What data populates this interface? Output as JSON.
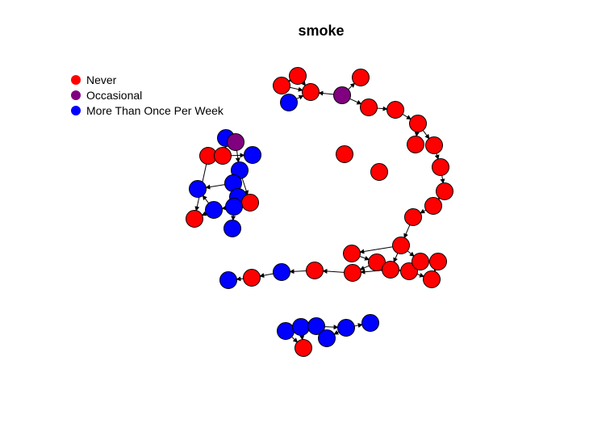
{
  "title": "smoke",
  "legend": [
    {
      "label": "Never",
      "color": "#ff0000"
    },
    {
      "label": "Occasional",
      "color": "#800080"
    },
    {
      "label": "More Than Once Per Week",
      "color": "#0000ff"
    }
  ]
}
